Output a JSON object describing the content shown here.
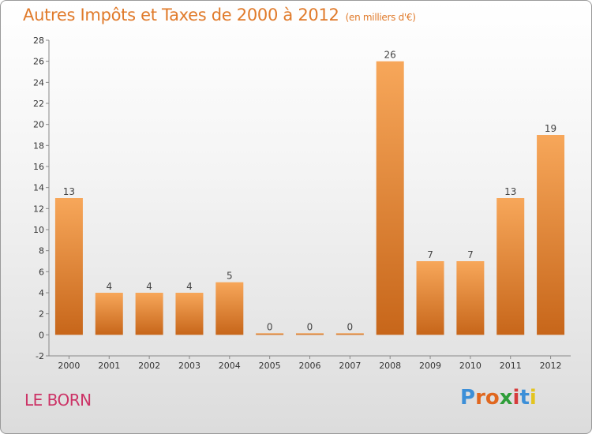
{
  "header": {
    "title": "Autres Impôts et Taxes de 2000 à 2012",
    "unit": "(en milliers d'€)"
  },
  "place_name": "LE BORN",
  "logo": {
    "text": "Proxiti",
    "letter_colors": [
      "#3c8fd8",
      "#e0671f",
      "#e0671f",
      "#2f9e3a",
      "#d63b3b",
      "#3c8fd8",
      "#e3c420"
    ]
  },
  "colors": {
    "bar_light": "#f7a75a",
    "bar_dark": "#c7661a",
    "title": "#e07a2a",
    "place": "#cc3366"
  },
  "chart_data": {
    "type": "bar",
    "categories": [
      "2000",
      "2001",
      "2002",
      "2003",
      "2004",
      "2005",
      "2006",
      "2007",
      "2008",
      "2009",
      "2010",
      "2011",
      "2012"
    ],
    "values": [
      13,
      4,
      4,
      4,
      5,
      0,
      0,
      0,
      26,
      7,
      7,
      13,
      19
    ],
    "data_labels": [
      "13",
      "4",
      "4",
      "4",
      "5",
      "0",
      "0",
      "0",
      "26",
      "7",
      "7",
      "13",
      "19"
    ],
    "yticks": [
      "-2",
      "0",
      "2",
      "4",
      "6",
      "8",
      "10",
      "12",
      "14",
      "16",
      "18",
      "20",
      "22",
      "24",
      "26",
      "28"
    ],
    "ylim": [
      -2,
      28
    ],
    "grid": false,
    "legend": "none"
  }
}
